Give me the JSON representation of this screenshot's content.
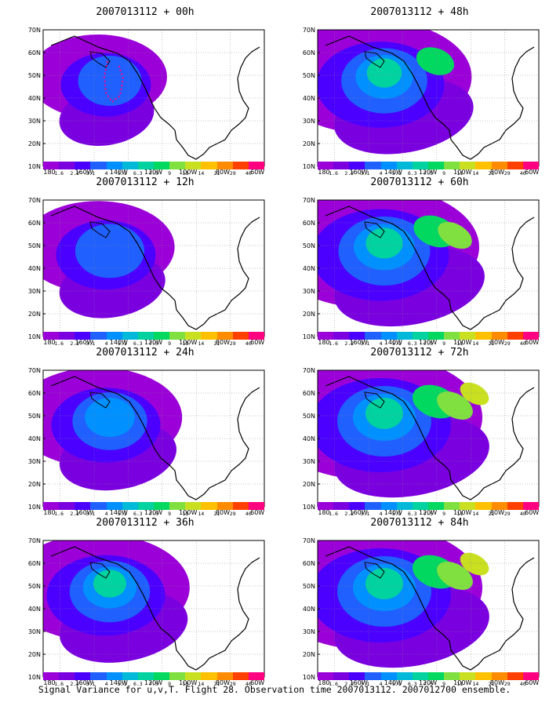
{
  "panels": [
    {
      "title": "2007013112 + 00h",
      "lead": 0
    },
    {
      "title": "2007013112 + 48h",
      "lead": 48
    },
    {
      "title": "2007013112 + 12h",
      "lead": 12
    },
    {
      "title": "2007013112 + 60h",
      "lead": 60
    },
    {
      "title": "2007013112 + 24h",
      "lead": 24
    },
    {
      "title": "2007013112 + 72h",
      "lead": 72
    },
    {
      "title": "2007013112 + 36h",
      "lead": 36
    },
    {
      "title": "2007013112 + 84h",
      "lead": 84
    }
  ],
  "axes": {
    "lat_labels": [
      "10N",
      "20N",
      "30N",
      "40N",
      "50N",
      "60N",
      "70N"
    ],
    "lon_labels": [
      "180",
      "160W",
      "140W",
      "120W",
      "100W",
      "80W",
      "60W"
    ],
    "lat_range": [
      10,
      70
    ],
    "lon_range": [
      -190,
      -60
    ]
  },
  "colorbar": {
    "labels": [
      "1.6",
      "2.2",
      "3.1",
      "4",
      "5.1",
      "6.3",
      "7.5",
      "9",
      "11",
      "14",
      "21",
      "29",
      "40"
    ],
    "colors": [
      "#9b00d9",
      "#7a00e0",
      "#4b00ff",
      "#2060ff",
      "#0090ff",
      "#00b8d8",
      "#00d2a0",
      "#00d860",
      "#80e040",
      "#c8e020",
      "#ffc000",
      "#ff8c00",
      "#ff4000",
      "#ff0080"
    ]
  },
  "caption": "Signal Variance for u,v,T. Flight 28. Observation time 2007013112. 2007012700 ensemble."
}
